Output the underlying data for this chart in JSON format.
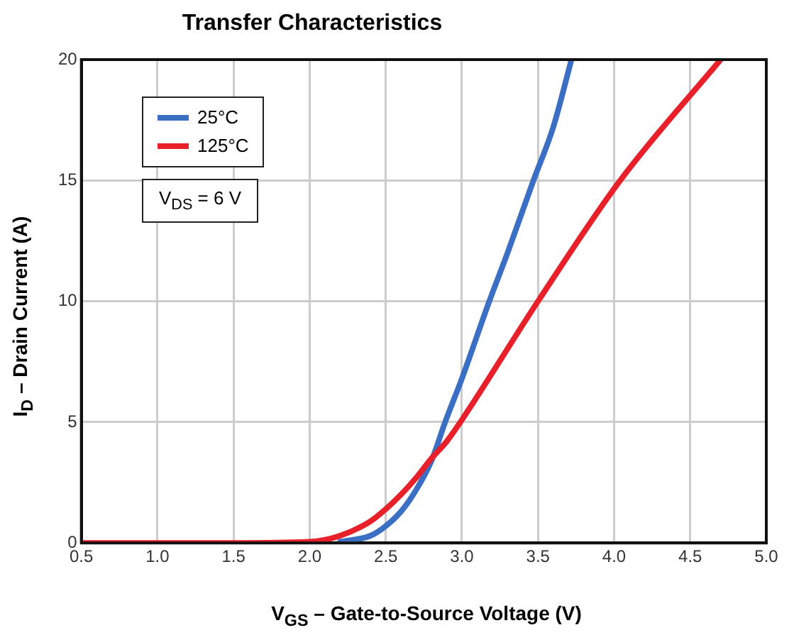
{
  "chart_data": {
    "type": "line",
    "title": "Transfer Characteristics",
    "xlabel": "V$_{GS}$ – Gate-to-Source Voltage (V)",
    "ylabel": "I$_{D}$ – Drain Current (A)",
    "annotations": [
      "V$_{DS}$ = 6 V"
    ],
    "series": [
      {
        "name": "25°C",
        "color": "#3a6fc4",
        "x": [
          2.2,
          2.4,
          2.5,
          2.6,
          2.7,
          2.8,
          2.89,
          3.0,
          3.18,
          3.3,
          3.47,
          3.6,
          3.72
        ],
        "values": [
          0.05,
          0.3,
          0.7,
          1.3,
          2.2,
          3.4,
          5,
          6.8,
          10,
          12,
          15,
          17.2,
          20
        ]
      },
      {
        "name": "125°C",
        "color": "#e8202a",
        "x": [
          0.5,
          1.0,
          1.5,
          2.0,
          2.2,
          2.4,
          2.5,
          2.6,
          2.7,
          2.8,
          2.9,
          2.99,
          3.5,
          4.04,
          4.7
        ],
        "values": [
          0,
          0,
          0,
          0.05,
          0.3,
          0.9,
          1.4,
          2.0,
          2.7,
          3.5,
          4.2,
          5,
          10,
          15,
          20
        ]
      }
    ],
    "xlim": [
      0.5,
      5.0
    ],
    "xticks": [
      {
        "value": 0.5,
        "label": "0.5"
      },
      {
        "value": 1,
        "label": "1.0"
      },
      {
        "value": 1.5,
        "label": "1.5"
      },
      {
        "value": 2,
        "label": "2.0"
      },
      {
        "value": 2.5,
        "label": "2.5"
      },
      {
        "value": 3,
        "label": "3.0"
      },
      {
        "value": 3.5,
        "label": "3.5"
      },
      {
        "value": 4,
        "label": "4.0"
      },
      {
        "value": 4.5,
        "label": "4.5"
      },
      {
        "value": 5,
        "label": "5.0"
      }
    ],
    "ylim": [
      0,
      20
    ],
    "yticks": [
      0,
      5,
      10,
      15,
      20
    ],
    "grid": true,
    "legend": "top left",
    "marker": "none",
    "line_style": "solid"
  }
}
